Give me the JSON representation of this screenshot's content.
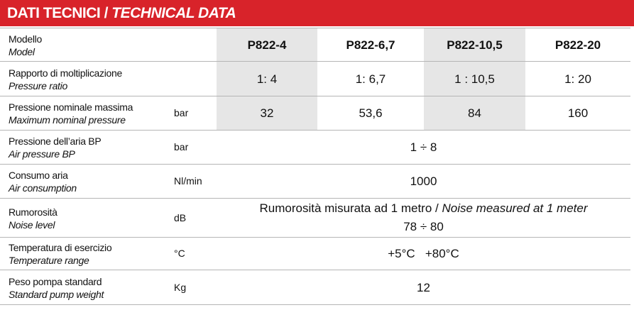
{
  "header": {
    "title_it": "DATI TECNICI / ",
    "title_en": "TECHNICAL DATA"
  },
  "rows": [
    {
      "label_it": "Modello",
      "label_en": "Model",
      "values": [
        "P822-4",
        "P822-6,7",
        "P822-10,5",
        "P822-20"
      ]
    },
    {
      "label_it": "Rapporto di moltiplicazione",
      "label_en": "Pressure ratio",
      "values": [
        "1: 4",
        "1: 6,7",
        "1 : 10,5",
        "1: 20"
      ]
    },
    {
      "label_it": "Pressione nominale massima",
      "label_en": "Maximum nominal pressure",
      "unit": "bar",
      "values": [
        "32",
        "53,6",
        "84",
        "160"
      ]
    },
    {
      "label_it": "Pressione dell’aria BP",
      "label_en": "Air pressure BP",
      "unit": "bar",
      "value": "1 ÷ 8"
    },
    {
      "label_it": "Consumo aria",
      "label_en": "Air consumption",
      "unit": "Nl/min",
      "value": "1000"
    },
    {
      "label_it": "Rumorosità",
      "label_en": "Noise level",
      "unit": "dB",
      "note_it": "Rumorosità misurata ad 1 metro / ",
      "note_en": "Noise measured at 1 meter",
      "value": "78 ÷ 80"
    },
    {
      "label_it": "Temperatura di esercizio",
      "label_en": "Temperature range",
      "unit": "°C",
      "value": "+5°C   +80°C"
    },
    {
      "label_it": "Peso pompa standard",
      "label_en": "Standard pump weight",
      "unit": "Kg",
      "value": "12"
    }
  ]
}
